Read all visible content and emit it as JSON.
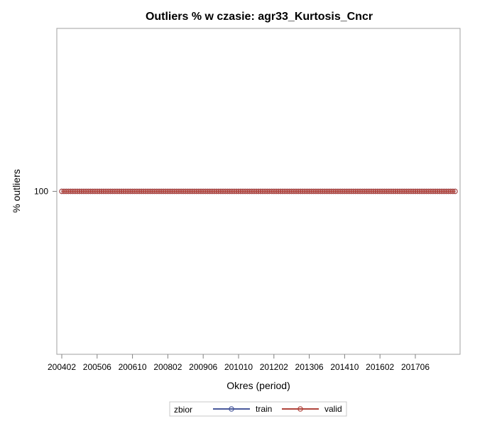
{
  "chart_data": {
    "type": "line",
    "title": "Outliers % w czasie: agr33_Kurtosis_Cncr",
    "xlabel": "Okres (period)",
    "ylabel": "% outliers",
    "y_ticks": [
      100
    ],
    "x_ticks": [
      "200402",
      "200506",
      "200610",
      "200802",
      "200906",
      "201010",
      "201202",
      "201306",
      "201410",
      "201602",
      "201706"
    ],
    "x_start": "200402",
    "x_end": "201812",
    "legend_title": "zbior",
    "legend_position": "bottom",
    "grid": false,
    "series": [
      {
        "name": "train",
        "color": "#4a5a9c",
        "marker": "circle",
        "value": 100
      },
      {
        "name": "valid",
        "color": "#b0443c",
        "marker": "circle",
        "value": 100
      }
    ]
  }
}
